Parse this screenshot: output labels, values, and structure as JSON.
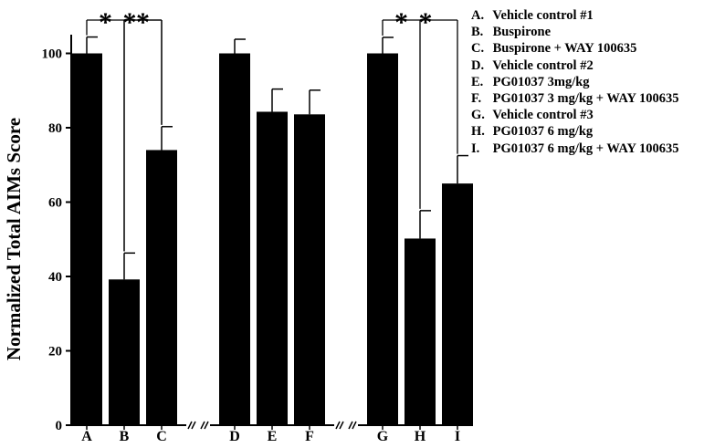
{
  "chart_data": {
    "type": "bar",
    "title": "",
    "xlabel": "",
    "ylabel": "Normalized Total AIMs Score",
    "ylim": [
      0,
      105
    ],
    "yticks": [
      0,
      20,
      40,
      60,
      80,
      100
    ],
    "grid": false,
    "legend_position": "top-right",
    "bar_color": "#000000",
    "groups": [
      [
        "A",
        "B",
        "C"
      ],
      [
        "D",
        "E",
        "F"
      ],
      [
        "G",
        "H",
        "I"
      ]
    ],
    "categories": [
      "A",
      "B",
      "C",
      "D",
      "E",
      "F",
      "G",
      "H",
      "I"
    ],
    "values": [
      100,
      39.2,
      74,
      100,
      84.3,
      83.6,
      100,
      50.2,
      65
    ],
    "errors": [
      4.4,
      7.1,
      6.3,
      3.8,
      6.1,
      6.5,
      4.3,
      7.5,
      7.5
    ],
    "legend": [
      {
        "key": "A.",
        "label": "Vehicle control #1"
      },
      {
        "key": "B.",
        "label": "Buspirone"
      },
      {
        "key": "C.",
        "label": "Buspirone + WAY 100635"
      },
      {
        "key": "D.",
        "label": "Vehicle control #2"
      },
      {
        "key": "E.",
        "label": "PG01037 3mg/kg"
      },
      {
        "key": "F.",
        "label": "PG01037 3 mg/kg + WAY 100635"
      },
      {
        "key": "G.",
        "label": "Vehicle control #3"
      },
      {
        "key": "H.",
        "label": "PG01037 6 mg/kg"
      },
      {
        "key": "I.",
        "label": "PG01037 6 mg/kg + WAY 100635"
      }
    ],
    "significance": [
      {
        "from": "A",
        "to": "B",
        "label": "*"
      },
      {
        "from": "A",
        "to": "C",
        "label": "*"
      },
      {
        "from": "B",
        "to": "C",
        "label": "*"
      },
      {
        "from": "G",
        "to": "H",
        "label": "*"
      },
      {
        "from": "G",
        "to": "I",
        "label": "*"
      }
    ]
  }
}
